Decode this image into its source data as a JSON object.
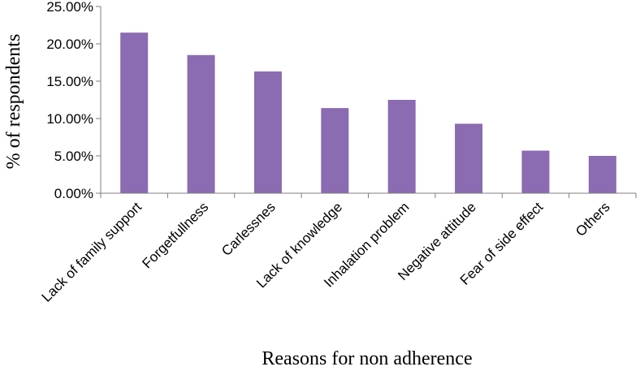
{
  "chart_data": {
    "type": "bar",
    "title": "",
    "xlabel": "Reasons for non adherence",
    "ylabel": "% of respondents",
    "categories": [
      "Lack of family support",
      "Forgetfullness",
      "Carlessnes",
      "Lack of knowledge",
      "Inhalation problem",
      "Negative attitude",
      "Fear of side effect",
      "Others"
    ],
    "values": [
      21.5,
      18.5,
      16.3,
      11.4,
      12.5,
      9.3,
      5.7,
      5.0
    ],
    "ylim": [
      0,
      25
    ],
    "yticks": [
      "0.00%",
      "5.00%",
      "10.00%",
      "15.00%",
      "20.00%",
      "25.00%"
    ],
    "ytick_values": [
      0,
      5,
      10,
      15,
      20,
      25
    ],
    "bar_color": "#8b6bb1",
    "grid": false,
    "legend": "none"
  }
}
